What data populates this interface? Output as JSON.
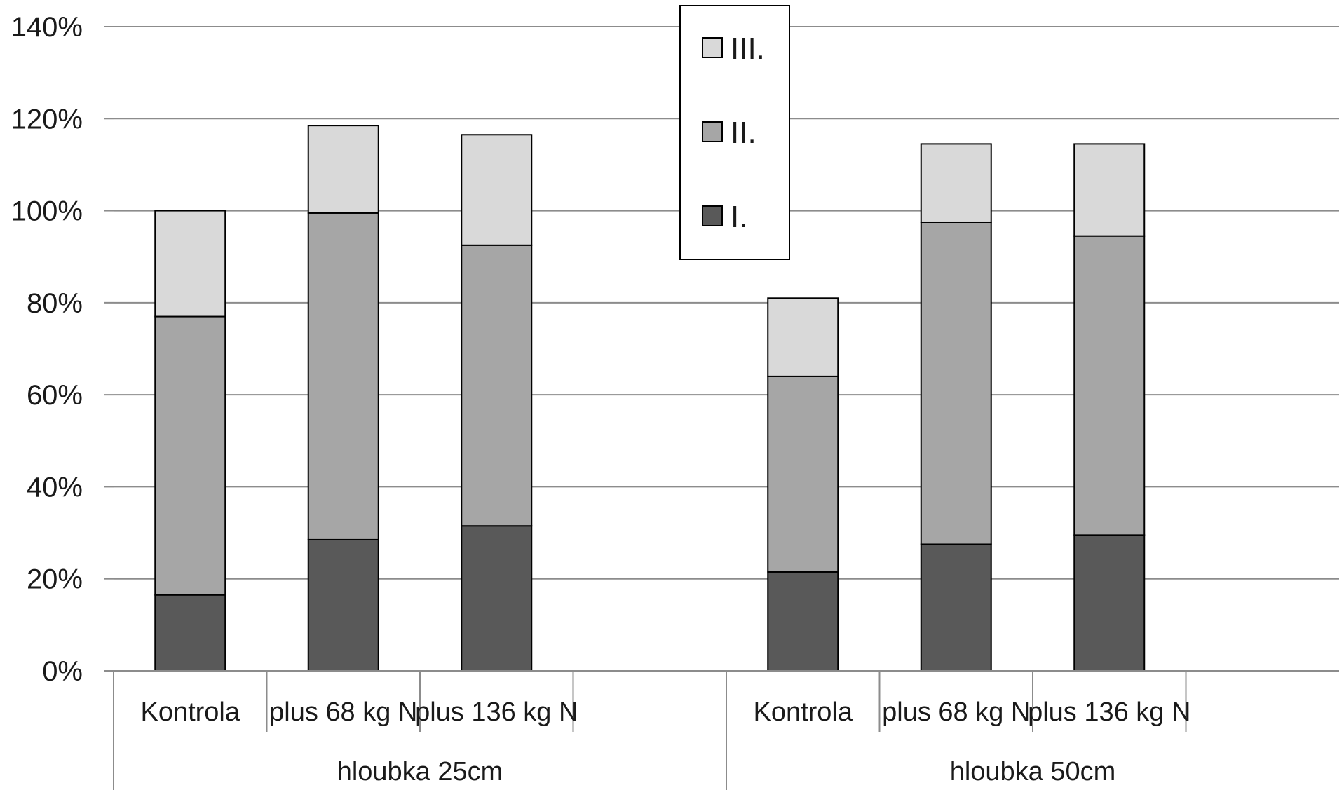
{
  "chart_data": {
    "type": "bar",
    "stacked": true,
    "yticks": [
      "0%",
      "20%",
      "40%",
      "60%",
      "80%",
      "100%",
      "120%",
      "140%"
    ],
    "ylim": [
      0,
      140
    ],
    "grid": true,
    "legend_position": "top-center",
    "groups": [
      {
        "label": "hloubka 25cm",
        "categories": [
          "Kontrola",
          "plus 68 kg N",
          "plus 136 kg N",
          ""
        ]
      },
      {
        "label": "hloubka 50cm",
        "categories": [
          "Kontrola",
          "plus 68 kg N",
          "plus 136 kg N"
        ]
      }
    ],
    "series": [
      {
        "name": "I.",
        "color": "#595959",
        "values": [
          16.5,
          28.5,
          31.5,
          21.5,
          27.5,
          29.5
        ]
      },
      {
        "name": "II.",
        "color": "#a6a6a6",
        "values": [
          60.5,
          71,
          61,
          42.5,
          70,
          65
        ]
      },
      {
        "name": "III.",
        "color": "#d9d9d9",
        "values": [
          23,
          19,
          24,
          17,
          17,
          20
        ]
      }
    ],
    "legend_order": [
      "III.",
      "II.",
      "I."
    ]
  }
}
